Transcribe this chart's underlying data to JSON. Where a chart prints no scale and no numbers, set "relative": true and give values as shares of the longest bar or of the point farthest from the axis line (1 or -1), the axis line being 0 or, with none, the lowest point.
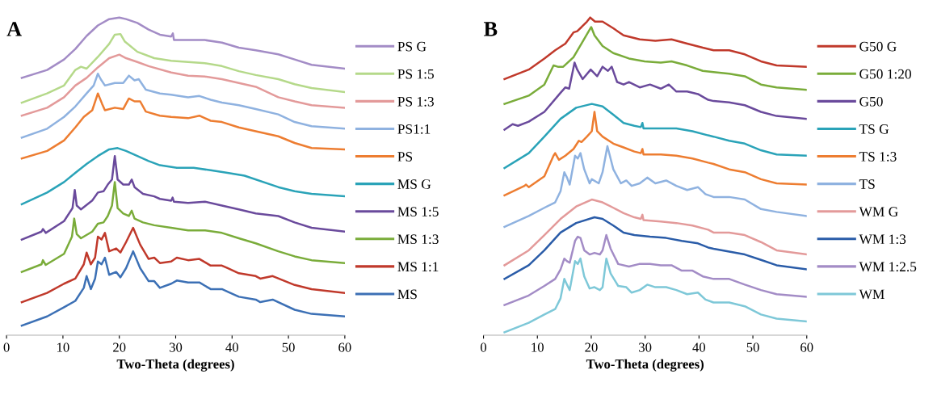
{
  "chart_data": [
    {
      "type": "line",
      "title": "A",
      "xlabel": "Two-Theta (degrees)",
      "relative": true,
      "xlim": [
        0,
        60
      ],
      "xticks": [
        0,
        10,
        20,
        30,
        40,
        50,
        60
      ],
      "legend": "right",
      "line_style": "solid",
      "series": [
        {
          "name": "PS G",
          "color": "#a38cc6",
          "x": [
            2.7,
            7.2,
            10.2,
            12.2,
            14.2,
            16.2,
            18.2,
            20,
            21.2,
            23.2,
            25.2,
            27.2,
            29.2,
            29.5,
            29.7,
            32.2,
            35.2,
            38.2,
            41.2,
            44.2,
            48.2,
            51.1,
            54.1,
            60
          ],
          "values": [
            0.81,
            0.835,
            0.868,
            0.901,
            0.942,
            0.975,
            0.995,
            1.0,
            0.995,
            0.983,
            0.962,
            0.946,
            0.94,
            0.95,
            0.929,
            0.929,
            0.929,
            0.921,
            0.905,
            0.897,
            0.884,
            0.868,
            0.851,
            0.839
          ]
        },
        {
          "name": "PS 1:5",
          "color": "#b5d98a",
          "x": [
            2.7,
            7.2,
            10.2,
            12.2,
            13.2,
            14.2,
            16.2,
            18.2,
            19.2,
            20.2,
            20.95,
            23.2,
            26.2,
            29.2,
            32.2,
            35.2,
            38.2,
            41.2,
            44.2,
            48.2,
            51.1,
            54.1,
            60
          ],
          "values": [
            0.732,
            0.761,
            0.786,
            0.835,
            0.845,
            0.839,
            0.876,
            0.917,
            0.946,
            0.948,
            0.925,
            0.892,
            0.872,
            0.864,
            0.86,
            0.856,
            0.847,
            0.831,
            0.819,
            0.806,
            0.79,
            0.778,
            0.765
          ]
        },
        {
          "name": "PS 1:3",
          "color": "#e39a9a",
          "x": [
            2.7,
            7.2,
            10.2,
            12.2,
            14.2,
            16.2,
            18.2,
            20,
            21.2,
            23.2,
            25.2,
            29.2,
            32.2,
            35.2,
            38.2,
            41.2,
            44.2,
            48.2,
            51.1,
            54.1,
            60
          ],
          "values": [
            0.691,
            0.716,
            0.749,
            0.786,
            0.81,
            0.843,
            0.872,
            0.883,
            0.872,
            0.86,
            0.847,
            0.827,
            0.817,
            0.814,
            0.806,
            0.794,
            0.782,
            0.749,
            0.736,
            0.724,
            0.716
          ]
        },
        {
          "name": "PS1:1",
          "color": "#8fb2e0",
          "x": [
            2.7,
            7.2,
            10.2,
            12.2,
            14.2,
            15.45,
            16.2,
            16.7,
            17.45,
            19.2,
            20.7,
            21.7,
            22.7,
            23.45,
            24.7,
            27.2,
            29.2,
            32.2,
            34.2,
            36.2,
            38.2,
            41.2,
            44.2,
            48.2,
            51.1,
            54.1,
            60
          ],
          "values": [
            0.622,
            0.65,
            0.687,
            0.72,
            0.761,
            0.786,
            0.823,
            0.806,
            0.786,
            0.794,
            0.794,
            0.817,
            0.802,
            0.806,
            0.773,
            0.761,
            0.757,
            0.749,
            0.753,
            0.741,
            0.732,
            0.724,
            0.712,
            0.695,
            0.671,
            0.658,
            0.65
          ]
        },
        {
          "name": "PS",
          "color": "#ed7d31",
          "x": [
            2.7,
            7.2,
            10.2,
            12.2,
            13.7,
            15.2,
            16.2,
            16.95,
            17.45,
            19.2,
            20.7,
            21.7,
            22.7,
            23.7,
            24.7,
            27.2,
            29.2,
            32.2,
            34.2,
            36.2,
            38.2,
            41.2,
            44.2,
            48.2,
            51.1,
            54.1,
            60
          ],
          "values": [
            0.556,
            0.58,
            0.613,
            0.654,
            0.687,
            0.708,
            0.761,
            0.728,
            0.708,
            0.716,
            0.712,
            0.745,
            0.736,
            0.736,
            0.704,
            0.691,
            0.687,
            0.683,
            0.691,
            0.675,
            0.671,
            0.654,
            0.642,
            0.626,
            0.605,
            0.589,
            0.585
          ]
        },
        {
          "name": "MS G",
          "color": "#2aa3b8",
          "x": [
            2.7,
            7.2,
            10.2,
            12.2,
            14.2,
            16.2,
            18.2,
            19.7,
            21.2,
            23.2,
            25.2,
            27.2,
            30.2,
            33.2,
            36.2,
            39.2,
            42.2,
            48.2,
            51.1,
            54.1,
            60
          ],
          "values": [
            0.412,
            0.449,
            0.482,
            0.511,
            0.539,
            0.564,
            0.585,
            0.589,
            0.58,
            0.564,
            0.548,
            0.535,
            0.527,
            0.527,
            0.519,
            0.511,
            0.502,
            0.466,
            0.453,
            0.445,
            0.437
          ]
        },
        {
          "name": "MS 1:5",
          "color": "#6a4a9c",
          "x": [
            2.7,
            6.2,
            6.45,
            6.95,
            10.2,
            11.7,
            12.1,
            12.45,
            13.2,
            15.2,
            16.2,
            17.2,
            17.95,
            18.7,
            19.2,
            19.7,
            20.7,
            21.7,
            22.2,
            22.7,
            24.2,
            26.2,
            27.2,
            29.2,
            29.45,
            29.7,
            32.2,
            35.2,
            38.2,
            41.2,
            44.2,
            48.2,
            51.1,
            54.1,
            60
          ],
          "values": [
            0.301,
            0.326,
            0.334,
            0.322,
            0.359,
            0.4,
            0.457,
            0.408,
            0.396,
            0.424,
            0.449,
            0.453,
            0.474,
            0.49,
            0.564,
            0.49,
            0.474,
            0.474,
            0.49,
            0.466,
            0.445,
            0.437,
            0.429,
            0.423,
            0.433,
            0.42,
            0.416,
            0.42,
            0.408,
            0.396,
            0.383,
            0.375,
            0.355,
            0.338,
            0.326
          ]
        },
        {
          "name": "MS 1:3",
          "color": "#7aac3a",
          "x": [
            2.7,
            6.2,
            6.45,
            6.95,
            10.2,
            11.6,
            12,
            12.45,
            13.2,
            15.2,
            16.2,
            17.2,
            17.95,
            18.7,
            19.2,
            19.7,
            20.7,
            21.7,
            22.2,
            22.7,
            24.2,
            26.2,
            29.2,
            32.2,
            35.2,
            38.2,
            41.2,
            44.2,
            48.2,
            51.1,
            54.1,
            60
          ],
          "values": [
            0.199,
            0.223,
            0.236,
            0.221,
            0.256,
            0.31,
            0.367,
            0.318,
            0.305,
            0.326,
            0.351,
            0.355,
            0.375,
            0.408,
            0.482,
            0.4,
            0.383,
            0.375,
            0.392,
            0.367,
            0.355,
            0.346,
            0.338,
            0.33,
            0.33,
            0.322,
            0.305,
            0.289,
            0.264,
            0.248,
            0.236,
            0.227
          ]
        },
        {
          "name": "MS 1:1",
          "color": "#c0392b",
          "x": [
            2.7,
            7.2,
            10.2,
            12.2,
            13.7,
            14.2,
            14.95,
            15.7,
            16.2,
            16.85,
            17.45,
            18.2,
            19.45,
            20.2,
            21.2,
            22.45,
            23.7,
            25.2,
            26.2,
            27.2,
            29.2,
            30.2,
            32.2,
            34.2,
            36.2,
            38.2,
            39.2,
            41.2,
            44.2,
            45,
            47.2,
            51.1,
            54.1,
            60
          ],
          "values": [
            0.104,
            0.133,
            0.162,
            0.178,
            0.223,
            0.26,
            0.223,
            0.244,
            0.31,
            0.301,
            0.322,
            0.264,
            0.273,
            0.26,
            0.293,
            0.338,
            0.285,
            0.24,
            0.244,
            0.227,
            0.232,
            0.244,
            0.236,
            0.24,
            0.219,
            0.219,
            0.211,
            0.195,
            0.186,
            0.178,
            0.186,
            0.158,
            0.145,
            0.133
          ]
        },
        {
          "name": "MS",
          "color": "#3c70b5",
          "x": [
            2.7,
            7.2,
            10.2,
            12.2,
            13.7,
            14.2,
            14.95,
            15.7,
            16.2,
            16.85,
            17.45,
            18.2,
            19.45,
            20.2,
            21.2,
            22.45,
            23.7,
            25.2,
            26.2,
            27.2,
            29.2,
            30.2,
            32.2,
            34.2,
            36.2,
            38.2,
            39.2,
            41.2,
            44.2,
            45,
            47.2,
            51.1,
            54.1,
            60
          ],
          "values": [
            0.03,
            0.059,
            0.088,
            0.108,
            0.149,
            0.186,
            0.145,
            0.178,
            0.232,
            0.223,
            0.244,
            0.19,
            0.199,
            0.182,
            0.211,
            0.264,
            0.211,
            0.17,
            0.17,
            0.149,
            0.162,
            0.172,
            0.166,
            0.166,
            0.145,
            0.145,
            0.137,
            0.121,
            0.112,
            0.104,
            0.112,
            0.08,
            0.067,
            0.059
          ]
        }
      ]
    },
    {
      "type": "line",
      "title": "B",
      "xlabel": "Two-Theta (degrees)",
      "relative": true,
      "xlim": [
        0,
        60
      ],
      "xticks": [
        0,
        10,
        20,
        30,
        40,
        50,
        60
      ],
      "legend": "right",
      "line_style": "solid",
      "series": [
        {
          "name": "G50 G",
          "color": "#c0392b",
          "x": [
            3.9,
            8.4,
            11.3,
            13.3,
            15.2,
            16.7,
            17.4,
            18.2,
            19.2,
            19.8,
            20.7,
            22.1,
            24.1,
            26.0,
            29.0,
            31.9,
            34.9,
            37.8,
            40.7,
            42.7,
            45.6,
            48.5,
            51.5,
            54.4,
            60
          ],
          "values": [
            0.806,
            0.836,
            0.871,
            0.897,
            0.918,
            0.953,
            0.957,
            0.97,
            0.987,
            1.0,
            0.987,
            0.987,
            0.966,
            0.944,
            0.931,
            0.927,
            0.931,
            0.918,
            0.905,
            0.897,
            0.897,
            0.884,
            0.862,
            0.849,
            0.845
          ]
        },
        {
          "name": "G50 1:20",
          "color": "#7aac3a",
          "x": [
            3.9,
            8.4,
            11.3,
            13.0,
            13.8,
            14.8,
            16.7,
            18.2,
            19.4,
            20.0,
            20.6,
            22.1,
            24.1,
            27.0,
            29.9,
            32.9,
            34.9,
            37.8,
            40.7,
            42.7,
            45.6,
            48.5,
            51.5,
            54.4,
            60
          ],
          "values": [
            0.728,
            0.754,
            0.789,
            0.849,
            0.845,
            0.845,
            0.875,
            0.918,
            0.953,
            0.97,
            0.944,
            0.91,
            0.888,
            0.871,
            0.862,
            0.858,
            0.862,
            0.849,
            0.832,
            0.828,
            0.823,
            0.815,
            0.789,
            0.78,
            0.772
          ]
        },
        {
          "name": "G50",
          "color": "#6a4a9c",
          "x": [
            3.9,
            5.4,
            6.4,
            8.4,
            11.3,
            14.3,
            15.2,
            15.9,
            16.9,
            17.4,
            18.4,
            19.9,
            21.1,
            22.1,
            23.1,
            23.8,
            24.8,
            26.0,
            27.0,
            29.0,
            30.9,
            32.9,
            34.4,
            35.8,
            37.8,
            39.8,
            41.7,
            42.7,
            45.6,
            48.5,
            51.5,
            54.4,
            60
          ],
          "values": [
            0.647,
            0.664,
            0.659,
            0.672,
            0.703,
            0.763,
            0.78,
            0.776,
            0.858,
            0.836,
            0.806,
            0.836,
            0.815,
            0.845,
            0.832,
            0.845,
            0.797,
            0.789,
            0.797,
            0.78,
            0.789,
            0.776,
            0.789,
            0.767,
            0.767,
            0.759,
            0.741,
            0.737,
            0.733,
            0.724,
            0.703,
            0.69,
            0.681
          ]
        },
        {
          "name": "TS G",
          "color": "#2aa3b8",
          "x": [
            3.9,
            8.4,
            11.3,
            14.3,
            17.2,
            20.1,
            22.1,
            24.1,
            26.0,
            28.0,
            29.2,
            29.5,
            29.7,
            32.9,
            35.8,
            38.8,
            41.7,
            42.7,
            45.6,
            48.5,
            51.5,
            54.4,
            60
          ],
          "values": [
            0.526,
            0.573,
            0.625,
            0.681,
            0.716,
            0.728,
            0.72,
            0.694,
            0.668,
            0.659,
            0.655,
            0.668,
            0.651,
            0.651,
            0.651,
            0.642,
            0.629,
            0.625,
            0.612,
            0.603,
            0.582,
            0.569,
            0.565
          ]
        },
        {
          "name": "TS 1:3",
          "color": "#ed7d31",
          "x": [
            3.9,
            7.6,
            7.9,
            8.4,
            11.3,
            13.0,
            13.3,
            14.0,
            15.2,
            16.7,
            17.7,
            18.2,
            19.2,
            20.1,
            20.6,
            21.1,
            22.1,
            24.1,
            26.0,
            28.0,
            29.2,
            29.5,
            29.7,
            32.9,
            35.8,
            38.8,
            41.7,
            42.7,
            45.6,
            48.5,
            51.5,
            54.4,
            60
          ],
          "values": [
            0.44,
            0.47,
            0.474,
            0.466,
            0.5,
            0.565,
            0.573,
            0.552,
            0.565,
            0.586,
            0.612,
            0.608,
            0.625,
            0.642,
            0.703,
            0.642,
            0.625,
            0.603,
            0.591,
            0.578,
            0.573,
            0.586,
            0.569,
            0.569,
            0.565,
            0.556,
            0.543,
            0.539,
            0.522,
            0.513,
            0.491,
            0.478,
            0.474
          ]
        },
        {
          "name": "TS",
          "color": "#8fb2e0",
          "x": [
            3.9,
            8.4,
            11.3,
            13.3,
            14.3,
            15.0,
            15.5,
            16.0,
            17.0,
            17.5,
            18.0,
            18.7,
            19.7,
            20.1,
            21.4,
            22.1,
            23.0,
            24.1,
            25.5,
            26.5,
            27.5,
            29.0,
            30.4,
            31.9,
            33.9,
            35.8,
            37.8,
            39.8,
            41.2,
            42.7,
            45.6,
            48.5,
            51.5,
            54.4,
            60
          ],
          "values": [
            0.341,
            0.375,
            0.401,
            0.418,
            0.453,
            0.513,
            0.496,
            0.474,
            0.565,
            0.556,
            0.573,
            0.522,
            0.478,
            0.491,
            0.478,
            0.513,
            0.595,
            0.522,
            0.478,
            0.487,
            0.47,
            0.478,
            0.496,
            0.478,
            0.487,
            0.47,
            0.457,
            0.466,
            0.444,
            0.435,
            0.435,
            0.427,
            0.397,
            0.388,
            0.375
          ]
        },
        {
          "name": "WM G",
          "color": "#e39a9a",
          "x": [
            3.9,
            8.4,
            11.3,
            14.3,
            17.2,
            20.1,
            22.1,
            24.1,
            26.0,
            28.0,
            29.2,
            29.5,
            29.7,
            32.9,
            35.8,
            38.8,
            41.7,
            42.7,
            45.6,
            48.5,
            51.5,
            54.4,
            60
          ],
          "values": [
            0.22,
            0.267,
            0.315,
            0.366,
            0.405,
            0.427,
            0.418,
            0.401,
            0.384,
            0.371,
            0.366,
            0.379,
            0.362,
            0.358,
            0.353,
            0.345,
            0.332,
            0.323,
            0.323,
            0.315,
            0.293,
            0.267,
            0.254
          ]
        },
        {
          "name": "WM 1:3",
          "color": "#2a5ca8",
          "x": [
            3.9,
            8.4,
            11.3,
            14.3,
            17.2,
            20.6,
            22.1,
            24.1,
            26.0,
            28.0,
            30.9,
            33.9,
            36.8,
            39.8,
            41.7,
            42.7,
            45.6,
            48.5,
            51.5,
            54.4,
            60
          ],
          "values": [
            0.177,
            0.22,
            0.267,
            0.323,
            0.353,
            0.371,
            0.366,
            0.345,
            0.323,
            0.315,
            0.31,
            0.306,
            0.297,
            0.289,
            0.276,
            0.272,
            0.263,
            0.254,
            0.237,
            0.22,
            0.207
          ]
        },
        {
          "name": "WM 1:2.5",
          "color": "#a38cc6",
          "x": [
            3.9,
            8.4,
            11.3,
            13.3,
            14.3,
            15.0,
            15.5,
            16.0,
            17.0,
            17.5,
            18.0,
            18.7,
            19.7,
            20.6,
            21.6,
            22.1,
            22.8,
            23.6,
            25.0,
            27.0,
            28.9,
            30.9,
            32.9,
            34.9,
            36.8,
            38.8,
            40.7,
            42.7,
            45.6,
            48.5,
            51.5,
            54.4,
            60
          ],
          "values": [
            0.095,
            0.125,
            0.155,
            0.177,
            0.207,
            0.241,
            0.233,
            0.228,
            0.297,
            0.31,
            0.306,
            0.267,
            0.254,
            0.259,
            0.254,
            0.267,
            0.315,
            0.272,
            0.224,
            0.216,
            0.224,
            0.224,
            0.22,
            0.22,
            0.203,
            0.203,
            0.185,
            0.177,
            0.177,
            0.159,
            0.142,
            0.129,
            0.121
          ]
        },
        {
          "name": "WM",
          "color": "#7ec8d8",
          "x": [
            3.9,
            8.4,
            11.3,
            13.3,
            14.3,
            15.0,
            15.5,
            16.0,
            17.0,
            17.5,
            18.0,
            18.7,
            19.7,
            20.6,
            21.6,
            22.1,
            22.8,
            23.6,
            25.0,
            26.5,
            27.5,
            29.0,
            30.4,
            31.9,
            33.9,
            35.8,
            37.8,
            39.8,
            41.2,
            42.7,
            45.6,
            48.5,
            51.5,
            54.4,
            60
          ],
          "values": [
            0.009,
            0.039,
            0.065,
            0.082,
            0.116,
            0.177,
            0.159,
            0.142,
            0.233,
            0.224,
            0.241,
            0.185,
            0.147,
            0.151,
            0.142,
            0.151,
            0.241,
            0.194,
            0.155,
            0.151,
            0.134,
            0.142,
            0.159,
            0.151,
            0.151,
            0.142,
            0.129,
            0.134,
            0.112,
            0.103,
            0.103,
            0.091,
            0.065,
            0.052,
            0.043
          ]
        }
      ]
    }
  ]
}
